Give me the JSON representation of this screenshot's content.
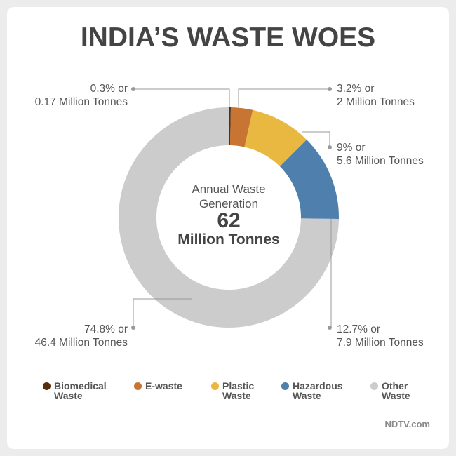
{
  "chart_data": {
    "type": "donut",
    "title": "INDIA’S WASTE WOES",
    "center_label": "Annual Waste\nGeneration",
    "center_value": 62,
    "center_unit": "Million Tonnes",
    "categories": [
      "Biomedical\nWaste",
      "E-waste",
      "Plastic\nWaste",
      "Hazardous\nWaste",
      "Other\nWaste"
    ],
    "values": [
      0.3,
      3.2,
      9,
      12.7,
      74.8
    ],
    "value_labels": [
      "0.3% or\n0.17 Million Tonnes",
      "3.2% or\n2 Million Tonnes",
      "9% or\n5.6 Million Tonnes",
      "12.7% or\n7.9 Million Tonnes",
      "74.8% or\n46.4 Million Tonnes"
    ],
    "colors": [
      "#5a2d0c",
      "#c87533",
      "#e9b840",
      "#4f7fad",
      "#cccccc"
    ],
    "legend": "bottom",
    "source": "NDTV.com"
  }
}
